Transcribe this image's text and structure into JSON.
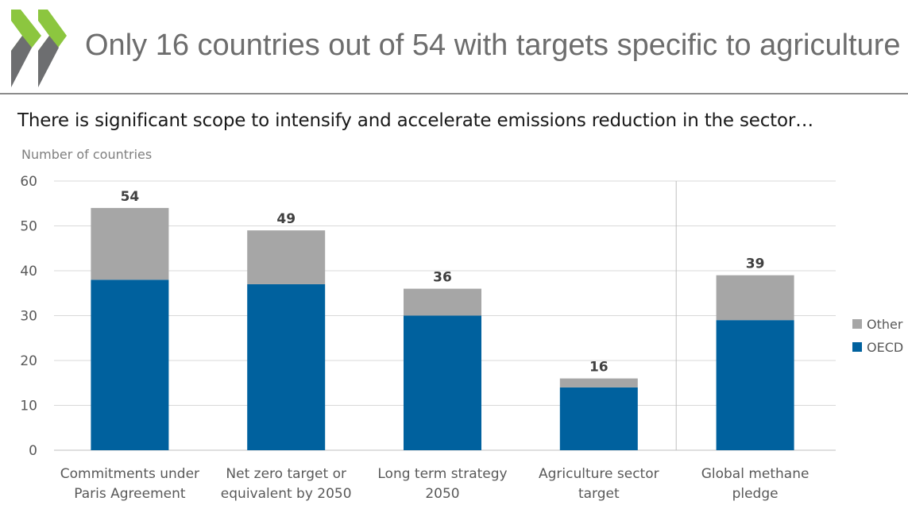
{
  "slide": {
    "title": "Only 16 countries out of 54 with targets specific to agriculture",
    "subtitle": "There is significant scope to intensify and accelerate emissions reduction in the sector…"
  },
  "logo": {
    "icon": "double-chevron-logo-icon",
    "colors": [
      "#8cc63f",
      "#6d6e70"
    ]
  },
  "chart_data": {
    "type": "bar",
    "stacked": true,
    "ylabel": "Number of countries",
    "ylim": [
      0,
      60
    ],
    "yticks": [
      "0",
      "10",
      "20",
      "30",
      "40",
      "50",
      "60"
    ],
    "grid": true,
    "legend_position": "right",
    "categories": [
      [
        "Commitments under",
        "Paris Agreement"
      ],
      [
        "Net zero target or",
        "equivalent by 2050"
      ],
      [
        "Long term strategy",
        "2050"
      ],
      [
        "Agriculture sector",
        "target"
      ],
      [
        "Global methane",
        "pledge"
      ]
    ],
    "series": [
      {
        "name": "OECD",
        "color": "#00619e",
        "values": [
          38,
          37,
          30,
          14,
          29
        ]
      },
      {
        "name": "Other",
        "color": "#a6a6a6",
        "values": [
          16,
          12,
          6,
          2,
          10
        ]
      }
    ],
    "totals": [
      "54",
      "49",
      "36",
      "16",
      "39"
    ],
    "separator_after_category": 3
  }
}
